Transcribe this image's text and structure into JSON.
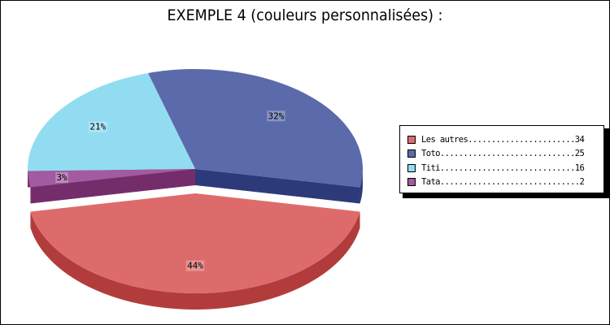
{
  "chart_data": {
    "type": "pie",
    "title": "EXEMPLE 4 (couleurs personnalisées) :",
    "slices": [
      {
        "label": "Les autres",
        "value": 34,
        "percent_label": "44%",
        "color": "#de6b6b",
        "side_color": "#b23c3c"
      },
      {
        "label": "Toto",
        "value": 25,
        "percent_label": "32%",
        "color": "#5b6aab",
        "side_color": "#2d3a7a"
      },
      {
        "label": "Titi",
        "value": 16,
        "percent_label": "21%",
        "color": "#92dcf2",
        "side_color": "#5aa8c2"
      },
      {
        "label": "Tata",
        "value": 2,
        "percent_label": "3%",
        "color": "#a25aa0",
        "side_color": "#742d6a"
      }
    ],
    "legend_position": "right",
    "exploded_slice": "Les autres",
    "three_d": true
  },
  "legend": {
    "rows": [
      "Les autres.......................34",
      "Toto.............................25",
      "Titi.............................16",
      "Tata..............................2"
    ]
  }
}
